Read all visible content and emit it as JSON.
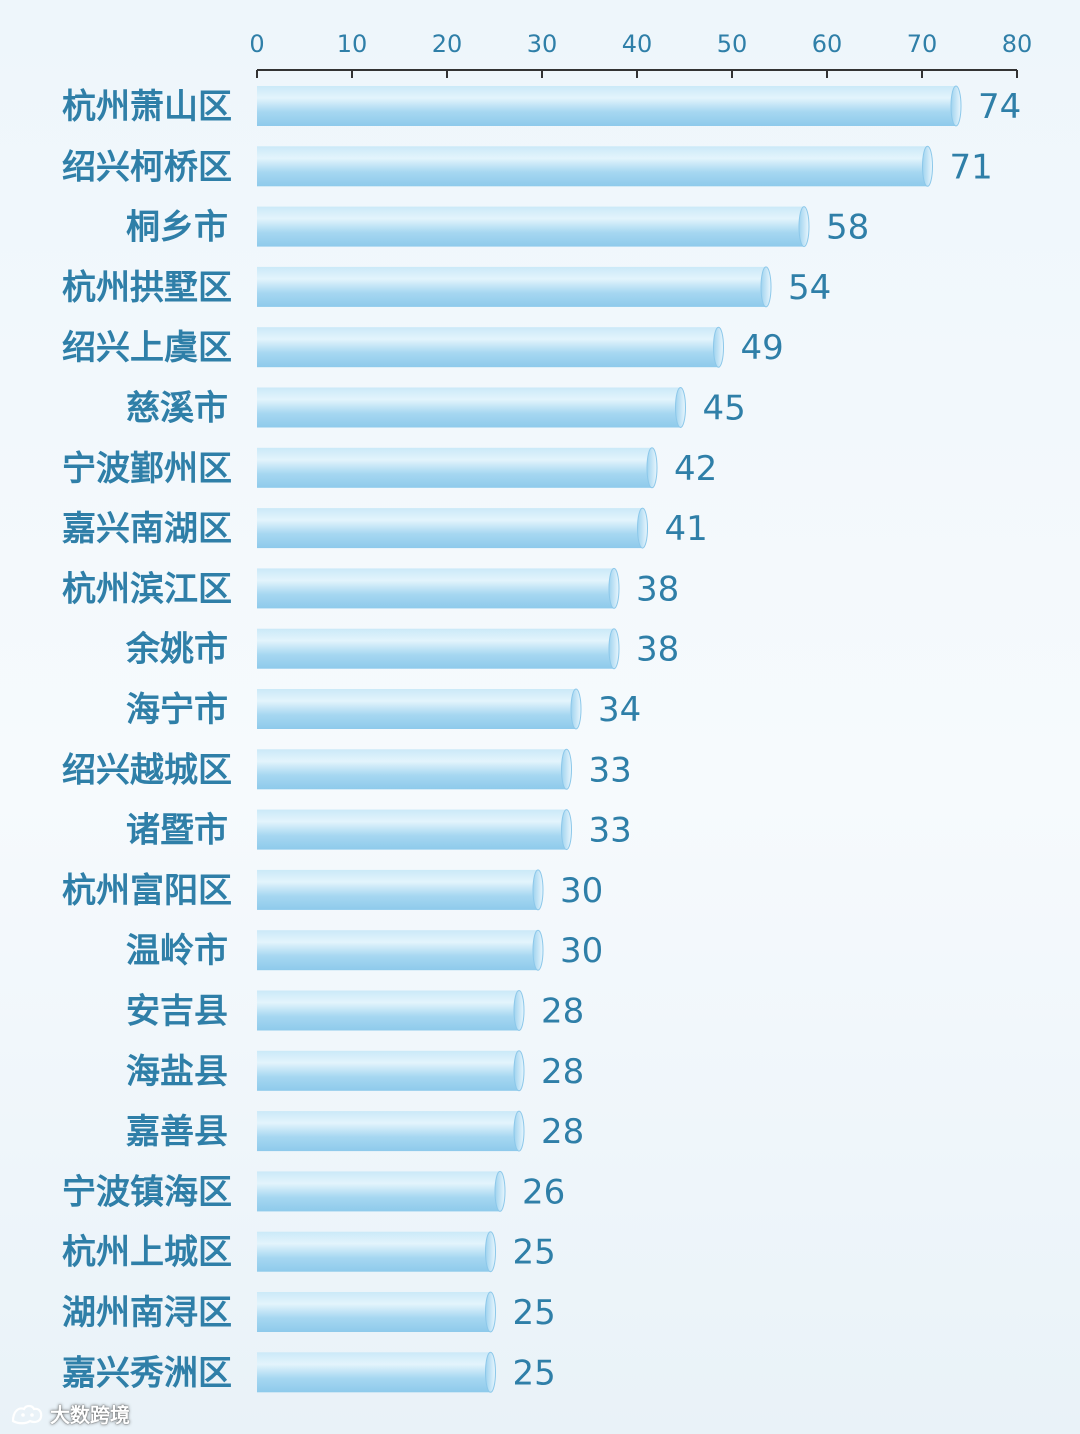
{
  "chart_data": {
    "type": "bar",
    "orientation": "horizontal",
    "categories": [
      "杭州萧山区",
      "绍兴柯桥区",
      "桐乡市",
      "杭州拱墅区",
      "绍兴上虞区",
      "慈溪市",
      "宁波鄞州区",
      "嘉兴南湖区",
      "杭州滨江区",
      "余姚市",
      "海宁市",
      "绍兴越城区",
      "诸暨市",
      "杭州富阳区",
      "温岭市",
      "安吉县",
      "海盐县",
      "嘉善县",
      "宁波镇海区",
      "杭州上城区",
      "湖州南浔区",
      "嘉兴秀洲区"
    ],
    "values": [
      74,
      71,
      58,
      54,
      49,
      45,
      42,
      41,
      38,
      38,
      34,
      33,
      33,
      30,
      30,
      28,
      28,
      28,
      26,
      25,
      25,
      25
    ],
    "xlim": [
      0,
      80
    ],
    "xticks": [
      0,
      10,
      20,
      30,
      40,
      50,
      60,
      70,
      80
    ],
    "axis_position": "top",
    "grid": false,
    "title": "",
    "xlabel": "",
    "ylabel": "",
    "colors": {
      "bar_light": "#d6eefa",
      "bar_mid": "#a8d8f2",
      "bar_dark": "#86c6ea",
      "text": "#2f7fa8",
      "axis": "#333333"
    }
  },
  "watermark": {
    "text": "大数跨境",
    "icon": "cat-logo-icon"
  }
}
